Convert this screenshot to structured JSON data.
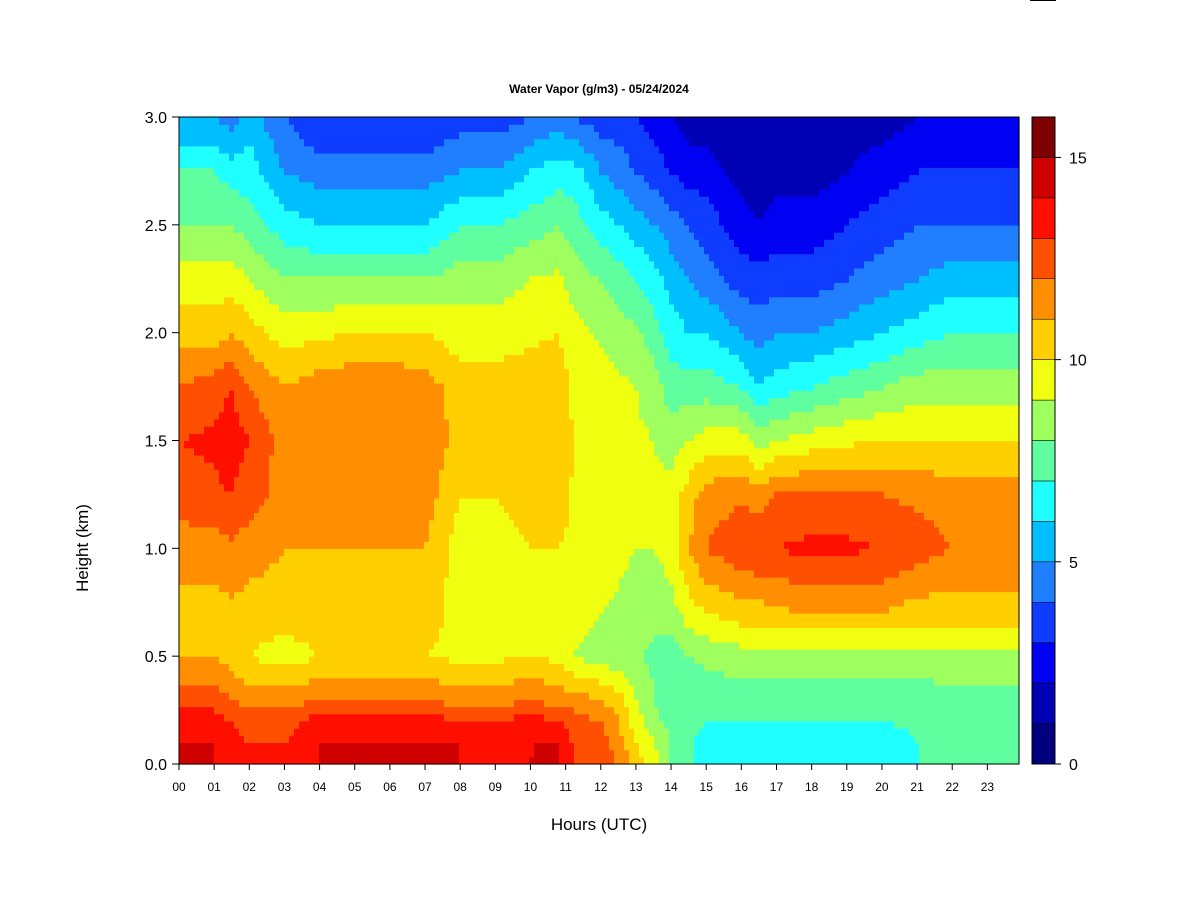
{
  "chart_data": {
    "type": "heatmap",
    "title": "Water Vapor (g/m3) - 05/24/2024",
    "xlabel": "Hours (UTC)",
    "ylabel": "Height (km)",
    "x_ticks": [
      "00",
      "01",
      "02",
      "03",
      "04",
      "05",
      "06",
      "07",
      "08",
      "09",
      "10",
      "11",
      "12",
      "13",
      "14",
      "15",
      "16",
      "17",
      "18",
      "19",
      "20",
      "21",
      "22",
      "23"
    ],
    "x_range": [
      0,
      23.9
    ],
    "y_ticks": [
      "0.0",
      "0.5",
      "1.0",
      "1.5",
      "2.0",
      "2.5",
      "3.0"
    ],
    "y_range": [
      0,
      3.0
    ],
    "colorbar": {
      "range": [
        0,
        16
      ],
      "levels": [
        0,
        1,
        2,
        3,
        4,
        5,
        6,
        7,
        8,
        9,
        10,
        11,
        12,
        13,
        14,
        15,
        16
      ],
      "ticks": [
        "0",
        "5",
        "10",
        "15"
      ],
      "colors": [
        "#00007f",
        "#0000b4",
        "#0000f2",
        "#0f3dff",
        "#1f7fff",
        "#00bfff",
        "#1fffff",
        "#5fff9f",
        "#9fff5f",
        "#efff0f",
        "#ffcf00",
        "#ff8f00",
        "#ff4f00",
        "#ff0f00",
        "#cf0000",
        "#7f0000"
      ]
    },
    "grid": false,
    "heights_km": [
      0.0,
      0.1,
      0.2,
      0.3,
      0.5,
      0.7,
      1.0,
      1.25,
      1.5,
      1.75,
      2.0,
      2.25,
      2.5,
      2.75,
      3.0
    ],
    "hours_utc": [
      0.0,
      1.0,
      1.5,
      2.0,
      3.0,
      4.0,
      5.0,
      6.0,
      7.0,
      8.0,
      9.0,
      10.0,
      10.8,
      11.2,
      12.0,
      12.5,
      13.0,
      13.5,
      14.0,
      14.5,
      15.0,
      16.0,
      16.5,
      17.0,
      18.0,
      19.0,
      20.0,
      21.0,
      22.0,
      23.0,
      23.9
    ],
    "values": [
      [
        14.0,
        14.0,
        13.5,
        12.5,
        11.0,
        10.5,
        11.5,
        12.5,
        13.0,
        12.0,
        10.5,
        9.5,
        8.0,
        7.0,
        5.0
      ],
      [
        14.0,
        14.0,
        13.5,
        12.5,
        11.0,
        10.5,
        11.5,
        12.8,
        13.2,
        12.5,
        10.5,
        9.5,
        8.0,
        7.0,
        5.0
      ],
      [
        13.5,
        13.5,
        13.0,
        12.0,
        10.5,
        10.8,
        11.8,
        13.0,
        13.5,
        13.0,
        11.0,
        9.5,
        8.0,
        6.5,
        4.5
      ],
      [
        13.0,
        13.0,
        12.5,
        11.5,
        10.0,
        10.5,
        11.5,
        12.5,
        13.0,
        12.0,
        10.5,
        9.0,
        7.5,
        6.5,
        5.5
      ],
      [
        13.0,
        13.0,
        12.5,
        11.5,
        9.5,
        10.5,
        11.0,
        11.5,
        11.5,
        11.0,
        9.5,
        8.0,
        6.5,
        5.0,
        4.0
      ],
      [
        14.0,
        14.0,
        13.5,
        12.0,
        10.0,
        10.5,
        11.0,
        11.5,
        11.8,
        11.5,
        9.8,
        8.0,
        6.0,
        4.5,
        3.0
      ],
      [
        14.0,
        14.0,
        13.5,
        12.0,
        10.0,
        10.5,
        11.0,
        11.5,
        12.0,
        11.8,
        10.0,
        8.0,
        6.0,
        4.5,
        3.0
      ],
      [
        14.0,
        14.0,
        13.5,
        12.0,
        10.0,
        10.5,
        11.0,
        11.5,
        12.0,
        11.8,
        10.0,
        8.0,
        6.0,
        4.5,
        3.0
      ],
      [
        14.0,
        14.0,
        13.5,
        12.0,
        10.0,
        10.5,
        11.0,
        11.5,
        12.0,
        11.5,
        10.0,
        8.0,
        6.0,
        4.5,
        3.0
      ],
      [
        14.0,
        14.0,
        13.0,
        11.5,
        9.8,
        9.5,
        9.5,
        10.0,
        10.5,
        10.5,
        9.5,
        8.5,
        7.0,
        5.0,
        3.5
      ],
      [
        13.5,
        13.5,
        13.0,
        11.5,
        9.8,
        9.5,
        9.5,
        10.0,
        10.5,
        10.5,
        9.5,
        8.5,
        7.0,
        5.0,
        3.5
      ],
      [
        14.0,
        14.0,
        13.5,
        12.0,
        10.0,
        9.8,
        10.0,
        10.5,
        10.8,
        10.5,
        9.8,
        9.0,
        7.5,
        6.0,
        4.0
      ],
      [
        14.0,
        14.0,
        13.0,
        11.5,
        9.8,
        9.8,
        10.0,
        10.5,
        11.0,
        10.5,
        10.0,
        9.2,
        8.0,
        6.5,
        4.5
      ],
      [
        13.0,
        13.0,
        12.5,
        11.5,
        9.0,
        9.5,
        9.8,
        9.9,
        10.0,
        9.8,
        9.5,
        8.5,
        7.5,
        6.5,
        4.0
      ],
      [
        12.5,
        12.5,
        12.0,
        11.0,
        8.5,
        9.0,
        9.5,
        9.7,
        9.8,
        9.5,
        8.8,
        8.0,
        6.5,
        5.0,
        3.5
      ],
      [
        12.0,
        11.5,
        11.0,
        10.5,
        8.3,
        8.8,
        9.3,
        9.5,
        9.5,
        9.2,
        8.5,
        7.5,
        6.0,
        4.5,
        3.5
      ],
      [
        10.5,
        10.0,
        9.5,
        9.0,
        8.2,
        8.5,
        9.0,
        9.3,
        9.2,
        9.0,
        8.2,
        7.0,
        5.5,
        4.0,
        3.0
      ],
      [
        9.5,
        9.0,
        8.5,
        8.0,
        7.8,
        8.3,
        9.0,
        9.2,
        9.0,
        8.5,
        7.5,
        6.5,
        5.0,
        3.5,
        2.5
      ],
      [
        8.0,
        8.0,
        7.5,
        7.5,
        7.5,
        8.5,
        9.5,
        9.5,
        8.5,
        7.5,
        6.5,
        5.5,
        4.5,
        3.0,
        2.0
      ],
      [
        7.2,
        7.2,
        7.3,
        7.5,
        8.0,
        9.5,
        11.0,
        10.5,
        9.0,
        7.5,
        6.0,
        5.0,
        4.0,
        2.5,
        1.5
      ],
      [
        6.5,
        6.5,
        7.0,
        7.5,
        8.2,
        10.0,
        12.0,
        11.5,
        9.5,
        7.5,
        6.0,
        4.5,
        3.5,
        2.5,
        1.5
      ],
      [
        6.5,
        6.5,
        7.0,
        7.5,
        8.5,
        10.5,
        12.8,
        11.8,
        9.5,
        7.0,
        5.0,
        3.5,
        2.5,
        1.5,
        1.0
      ],
      [
        6.5,
        6.5,
        7.0,
        7.5,
        8.5,
        10.5,
        13.0,
        11.5,
        8.5,
        6.0,
        4.5,
        3.5,
        2.0,
        1.5,
        1.0
      ],
      [
        6.5,
        6.5,
        7.0,
        7.5,
        8.5,
        10.8,
        13.0,
        12.0,
        9.0,
        6.5,
        5.0,
        3.5,
        2.5,
        1.5,
        1.0
      ],
      [
        6.5,
        6.5,
        7.0,
        7.5,
        8.5,
        11.0,
        13.3,
        12.2,
        9.5,
        7.0,
        5.0,
        3.5,
        2.5,
        1.5,
        1.0
      ],
      [
        6.5,
        6.5,
        7.0,
        7.5,
        8.5,
        11.0,
        13.2,
        12.2,
        9.8,
        7.5,
        5.5,
        4.0,
        3.0,
        2.0,
        1.5
      ],
      [
        6.5,
        6.5,
        7.0,
        7.5,
        8.5,
        11.0,
        13.0,
        12.0,
        10.0,
        8.0,
        6.0,
        4.5,
        3.5,
        2.5,
        1.5
      ],
      [
        7.0,
        7.0,
        7.2,
        7.5,
        8.5,
        10.5,
        12.5,
        11.8,
        10.0,
        8.5,
        6.5,
        5.0,
        4.0,
        3.0,
        2.0
      ],
      [
        7.5,
        7.5,
        7.5,
        7.8,
        8.5,
        10.5,
        12.0,
        11.5,
        10.0,
        8.5,
        7.0,
        5.5,
        4.0,
        3.0,
        2.0
      ],
      [
        7.5,
        7.5,
        7.5,
        7.8,
        8.5,
        10.5,
        12.0,
        11.5,
        10.0,
        8.5,
        7.0,
        5.5,
        4.0,
        3.0,
        2.0
      ],
      [
        7.5,
        7.5,
        7.5,
        7.8,
        8.5,
        10.5,
        12.0,
        11.5,
        10.0,
        8.5,
        7.0,
        5.5,
        4.0,
        3.0,
        2.0
      ]
    ]
  }
}
